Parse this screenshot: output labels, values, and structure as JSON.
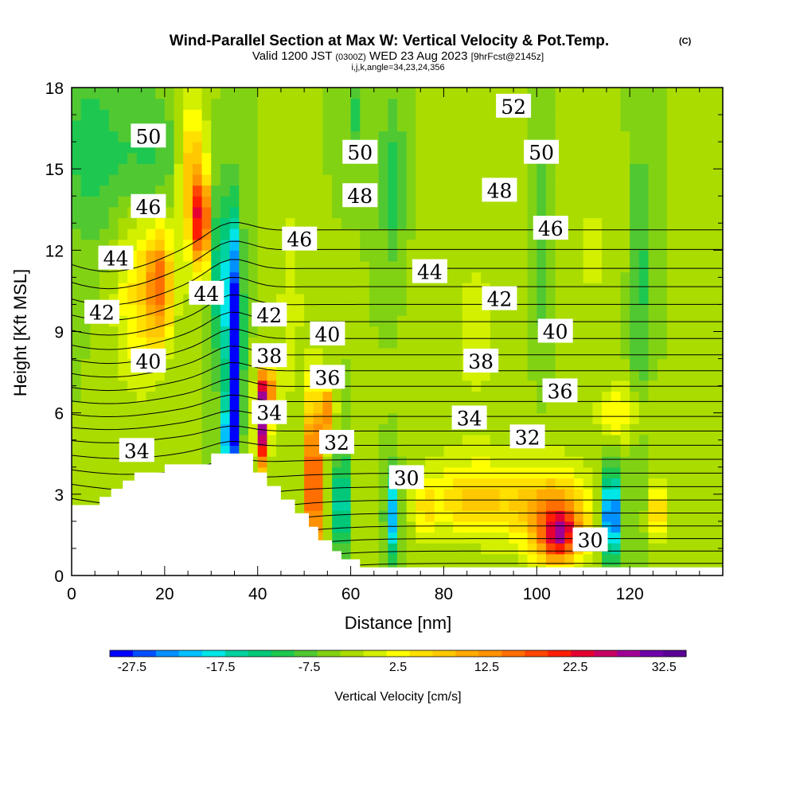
{
  "header": {
    "title": "Wind-Parallel Section at Max W: Vertical Velocity & Pot.Temp.",
    "copyright_mark": "(C)",
    "valid_prefix": "Valid 1200 JST",
    "valid_utc": "(0300Z)",
    "valid_date": "WED 23 Aug 2023",
    "forecast": "[9hrFcst@2145z]",
    "grid_info": "i,j,k,angle=34,23,24,356"
  },
  "chart_data": {
    "type": "heatmap",
    "title": "Wind-Parallel Section at Max W: Vertical Velocity & Pot.Temp.",
    "xlabel": "Distance [nm]",
    "ylabel": "Height [Kft MSL]",
    "xlim": [
      0,
      140
    ],
    "ylim": [
      0,
      18
    ],
    "x_ticks": [
      0,
      20,
      40,
      60,
      80,
      100,
      120
    ],
    "y_ticks": [
      0,
      3,
      6,
      9,
      12,
      15,
      18
    ],
    "colorbar": {
      "title": "Vertical Velocity [cm/s]",
      "tick_labels": [
        "-27.5",
        "-17.5",
        "-7.5",
        "2.5",
        "12.5",
        "22.5",
        "32.5"
      ],
      "min": -30,
      "max": 35,
      "colors": [
        "#0000ff",
        "#0050ff",
        "#0090ff",
        "#00c0ff",
        "#00e6e6",
        "#00d2a0",
        "#00c878",
        "#1ec850",
        "#50c832",
        "#82d214",
        "#aadc00",
        "#d2f000",
        "#ffff00",
        "#ffe000",
        "#ffc800",
        "#ffaa00",
        "#ff9100",
        "#ff6e00",
        "#ff4600",
        "#ff1e00",
        "#e60032",
        "#c80064",
        "#a00096",
        "#6e00aa",
        "#5a0096"
      ]
    },
    "theta_contour_labels": [
      {
        "label": "52",
        "x": 95,
        "y": 17.3
      },
      {
        "label": "50",
        "x": 16.5,
        "y": 16.2
      },
      {
        "label": "50",
        "x": 62,
        "y": 15.6
      },
      {
        "label": "50",
        "x": 101,
        "y": 15.6
      },
      {
        "label": "48",
        "x": 62,
        "y": 14.0
      },
      {
        "label": "48",
        "x": 92,
        "y": 14.2
      },
      {
        "label": "46",
        "x": 16.5,
        "y": 13.6
      },
      {
        "label": "46",
        "x": 49,
        "y": 12.4
      },
      {
        "label": "46",
        "x": 103,
        "y": 12.8
      },
      {
        "label": "44",
        "x": 9.5,
        "y": 11.7
      },
      {
        "label": "44",
        "x": 29,
        "y": 10.4
      },
      {
        "label": "44",
        "x": 77,
        "y": 11.2
      },
      {
        "label": "42",
        "x": 6.5,
        "y": 9.7
      },
      {
        "label": "42",
        "x": 42.5,
        "y": 9.6
      },
      {
        "label": "42",
        "x": 92,
        "y": 10.2
      },
      {
        "label": "40",
        "x": 16.5,
        "y": 7.9
      },
      {
        "label": "40",
        "x": 55,
        "y": 8.9
      },
      {
        "label": "40",
        "x": 104,
        "y": 9.0
      },
      {
        "label": "38",
        "x": 42.5,
        "y": 8.1
      },
      {
        "label": "38",
        "x": 88,
        "y": 7.9
      },
      {
        "label": "36",
        "x": 55,
        "y": 7.3
      },
      {
        "label": "36",
        "x": 105,
        "y": 6.8
      },
      {
        "label": "34",
        "x": 42.5,
        "y": 6.0
      },
      {
        "label": "34",
        "x": 85.5,
        "y": 5.8
      },
      {
        "label": "34",
        "x": 14,
        "y": 4.6
      },
      {
        "label": "32",
        "x": 57,
        "y": 4.9
      },
      {
        "label": "32",
        "x": 98,
        "y": 5.1
      },
      {
        "label": "30",
        "x": 72,
        "y": 3.6
      },
      {
        "label": "30",
        "x": 111.5,
        "y": 1.3
      }
    ],
    "theta_levels": [
      30,
      31,
      32,
      33,
      34,
      35,
      36,
      37,
      38,
      39,
      40,
      41,
      42,
      43,
      44,
      45,
      46,
      47,
      48,
      49,
      50,
      51,
      52,
      53
    ]
  }
}
